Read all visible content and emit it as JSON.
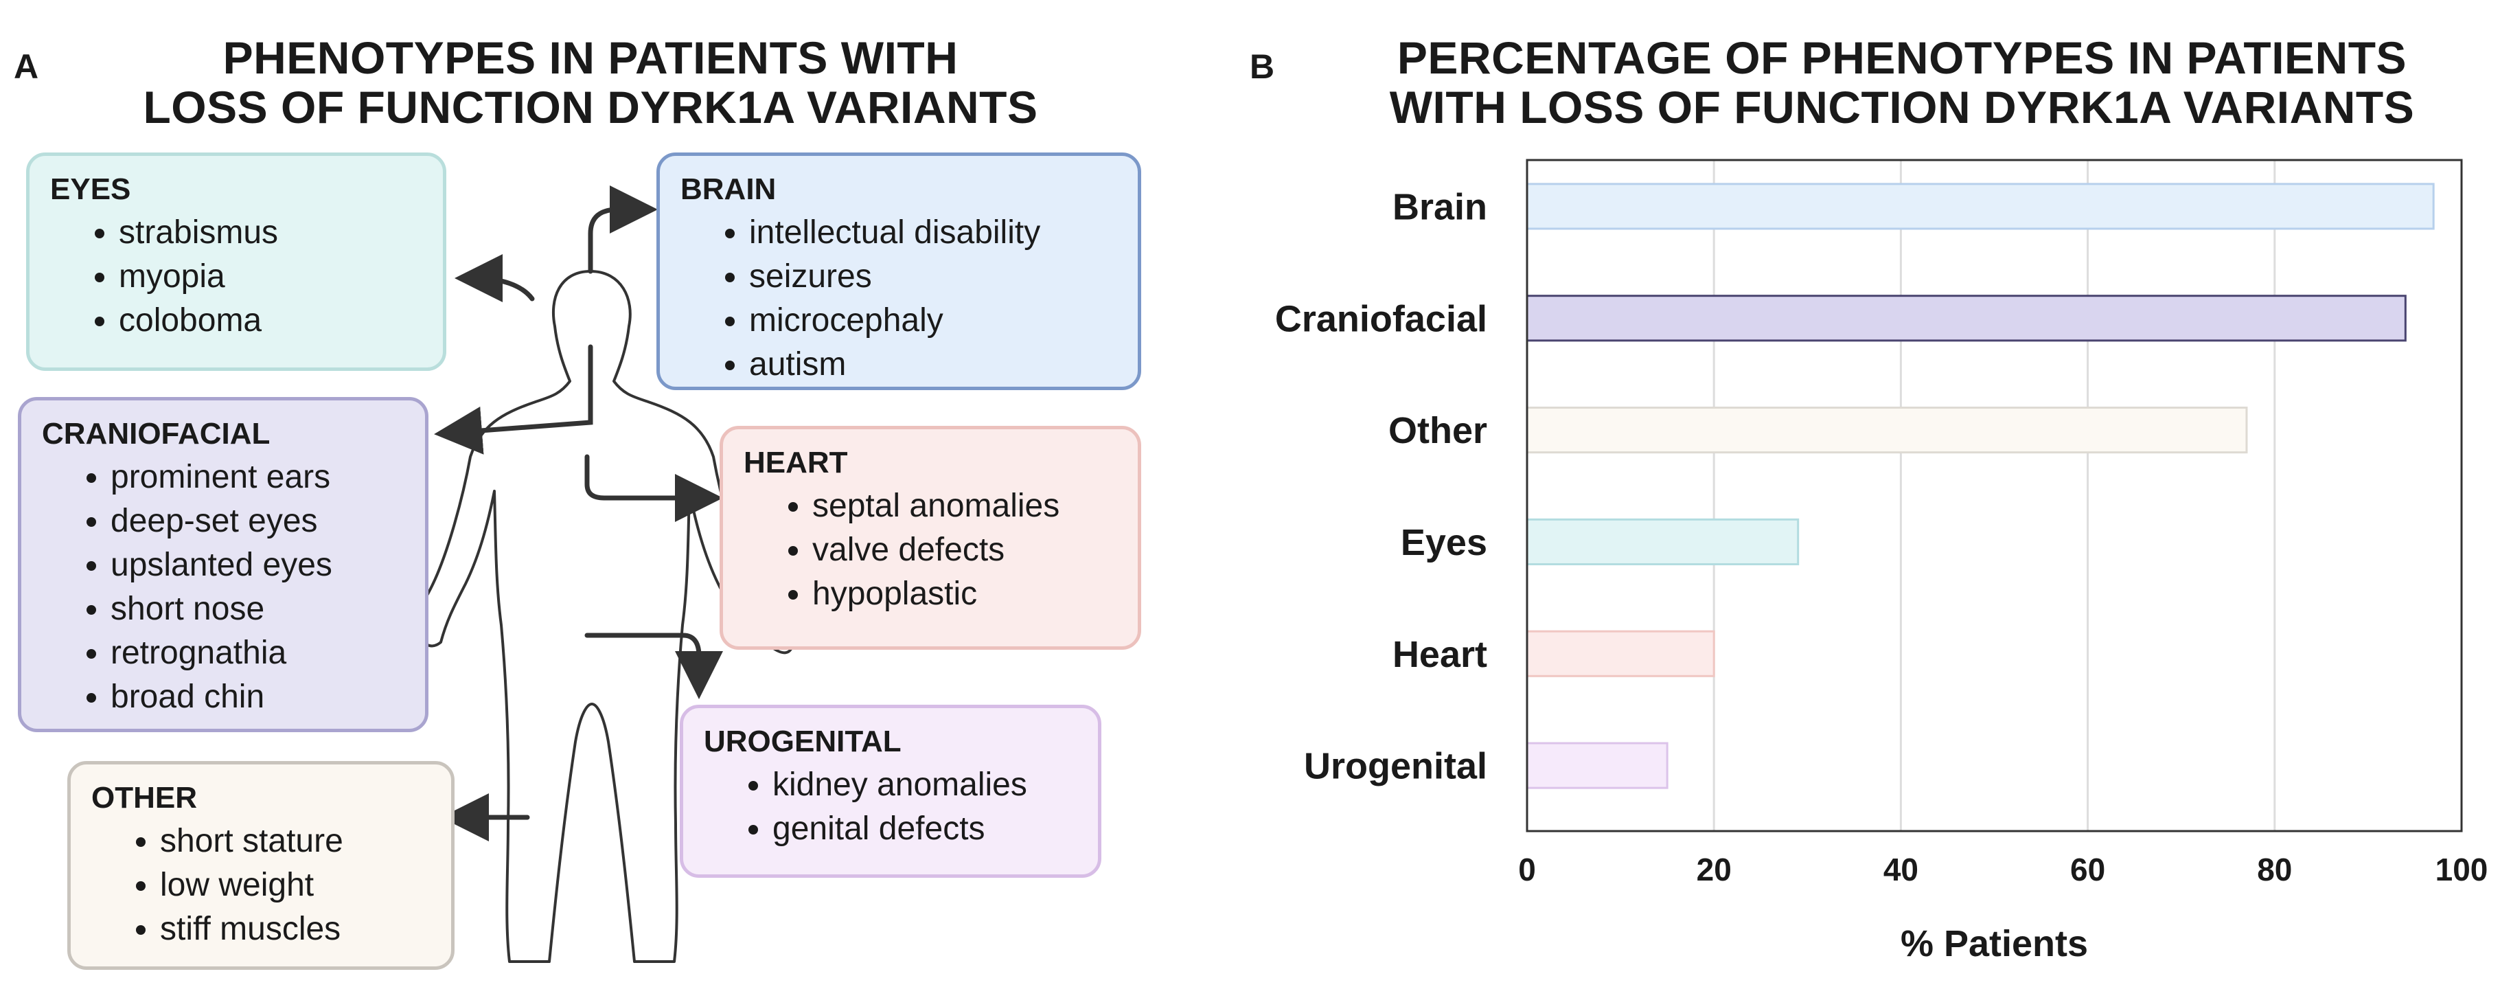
{
  "panel_a": {
    "letter": "A",
    "title_line1": "PHENOTYPES IN PATIENTS WITH",
    "title_line2": "LOSS OF FUNCTION DYRK1A VARIANTS",
    "eyes": {
      "title": "EYES",
      "items": [
        "strabismus",
        "myopia",
        "coloboma"
      ]
    },
    "brain": {
      "title": "BRAIN",
      "items": [
        "intellectual disability",
        "seizures",
        "microcephaly",
        "autism"
      ]
    },
    "craniofacial": {
      "title": "CRANIOFACIAL",
      "items": [
        "prominent ears",
        "deep-set eyes",
        "upslanted eyes",
        "short nose",
        "retrognathia",
        "broad chin"
      ]
    },
    "heart": {
      "title": "HEART",
      "items": [
        "septal anomalies",
        "valve defects",
        "hypoplastic"
      ]
    },
    "urogenital": {
      "title": "UROGENITAL",
      "items": [
        "kidney anomalies",
        "genital defects"
      ]
    },
    "other": {
      "title": "OTHER",
      "items": [
        "short stature",
        "low weight",
        "stiff muscles"
      ]
    }
  },
  "panel_b": {
    "letter": "B",
    "title_line1": "PERCENTAGE OF PHENOTYPES IN PATIENTS",
    "title_line2": "WITH LOSS OF FUNCTION DYRK1A VARIANTS"
  },
  "colors": {
    "eyes_fill": "#e3f5f4",
    "eyes_border": "#b9dedc",
    "brain_fill": "#e3eefb",
    "brain_border": "#7b98c9",
    "craniofacial_fill": "#e6e4f4",
    "craniofacial_border": "#a9a4cf",
    "heart_fill": "#fbeceb",
    "heart_border": "#ecc1bd",
    "urogenital_fill": "#f6ecfa",
    "urogenital_border": "#d7bde6",
    "other_fill": "#fbf7f1",
    "other_border": "#c9c4bd"
  },
  "chart_data": {
    "type": "bar",
    "orientation": "horizontal",
    "title": "PERCENTAGE OF PHENOTYPES IN PATIENTS WITH LOSS OF FUNCTION DYRK1A VARIANTS",
    "categories": [
      "Brain",
      "Craniofacial",
      "Other",
      "Eyes",
      "Heart",
      "Urogenital"
    ],
    "values": [
      97,
      94,
      77,
      29,
      20,
      15
    ],
    "bar_colors": [
      "#e4f0fb",
      "#d9d5ef",
      "#fcf9f3",
      "#e1f4f5",
      "#fcebea",
      "#f6eafb"
    ],
    "bar_edges": [
      "#b7d0ec",
      "#4a4570",
      "#dedad3",
      "#b2dce0",
      "#f0c7c3",
      "#dcc3ea"
    ],
    "xlabel": "% Patients",
    "ylabel": "",
    "xlim": [
      0,
      100
    ],
    "xticks": [
      0,
      20,
      40,
      60,
      80,
      100
    ],
    "grid": true
  }
}
